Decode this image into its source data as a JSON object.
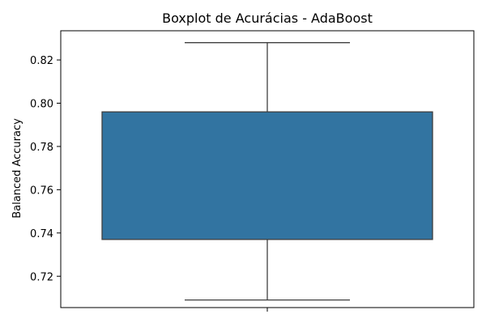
{
  "chart_data": {
    "type": "boxplot",
    "title": "Boxplot de Acurácias - AdaBoost",
    "xlabel": "",
    "ylabel": "Balanced Accuracy",
    "ylim": [
      0.7055,
      0.8335
    ],
    "yticks": [
      0.72,
      0.74,
      0.76,
      0.78,
      0.8,
      0.82
    ],
    "ytick_labels": [
      "0.72",
      "0.74",
      "0.76",
      "0.78",
      "0.80",
      "0.82"
    ],
    "categories": [
      ""
    ],
    "series": [
      {
        "whisker_low": 0.709,
        "q1": 0.737,
        "q3": 0.796,
        "whisker_high": 0.828
      }
    ],
    "grid": false,
    "colors": {
      "box_fill": "#3274a1",
      "lines": "#3f3f3f",
      "axes": "#000000"
    }
  }
}
